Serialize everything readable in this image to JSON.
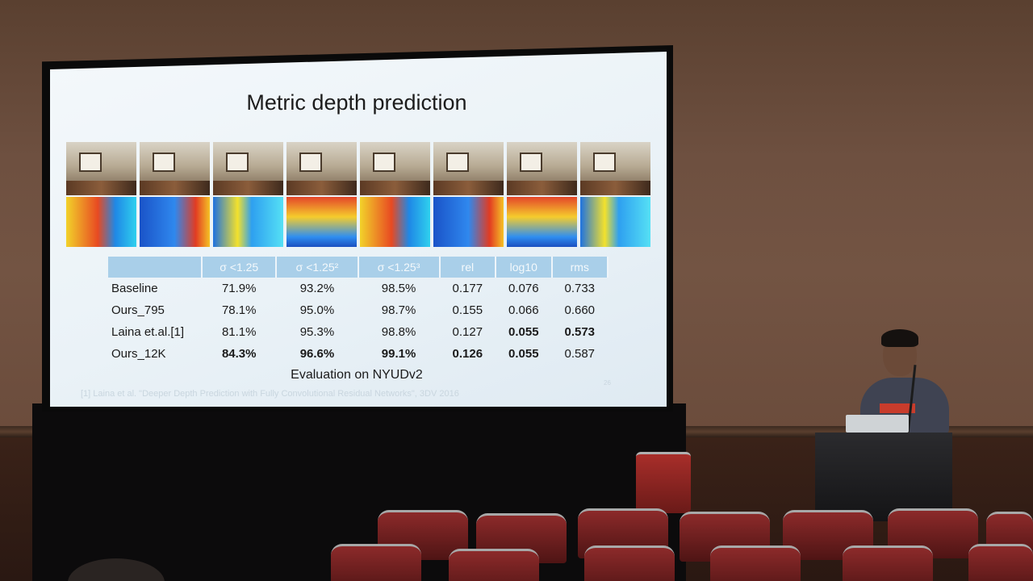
{
  "slide": {
    "title": "Metric depth prediction",
    "table": {
      "headers": [
        "σ <1.25",
        "σ <1.25²",
        "σ <1.25³",
        "rel",
        "log10",
        "rms"
      ],
      "rows": [
        {
          "method": "Baseline",
          "values": [
            "71.9%",
            "93.2%",
            "98.5%",
            "0.177",
            "0.076",
            "0.733"
          ],
          "bold": [
            false,
            false,
            false,
            false,
            false,
            false
          ]
        },
        {
          "method": "Ours_795",
          "values": [
            "78.1%",
            "95.0%",
            "98.7%",
            "0.155",
            "0.066",
            "0.660"
          ],
          "bold": [
            false,
            false,
            false,
            false,
            false,
            false
          ]
        },
        {
          "method": "Laina et.al.[1]",
          "values": [
            "81.1%",
            "95.3%",
            "98.8%",
            "0.127",
            "0.055",
            "0.573"
          ],
          "bold": [
            false,
            false,
            false,
            false,
            true,
            true
          ]
        },
        {
          "method": "Ours_12K",
          "values": [
            "84.3%",
            "96.6%",
            "99.1%",
            "0.126",
            "0.055",
            "0.587"
          ],
          "bold": [
            true,
            true,
            true,
            true,
            true,
            false
          ]
        }
      ]
    },
    "caption": "Evaluation on NYUDv2",
    "footnote": "[1] Laina et al. \"Deeper Depth Prediction with Fully Convolutional Residual Networks\", 3DV 2016",
    "slide_number": "26"
  }
}
